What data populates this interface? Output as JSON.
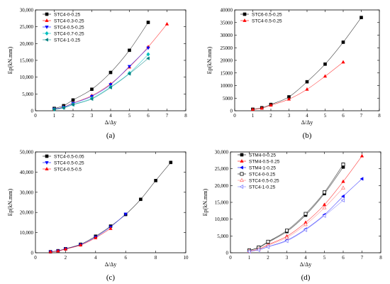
{
  "chart_data": [
    {
      "type": "scatter",
      "panel_label": "(a)",
      "xlabel": "Δ/Δy",
      "ylabel": "Ep(kN.mm)",
      "xlim": [
        0,
        8
      ],
      "ylim": [
        0,
        30000
      ],
      "x_ticks": [
        "0",
        "1",
        "2",
        "3",
        "4",
        "5",
        "6",
        "7",
        "8"
      ],
      "y_ticks": [
        "0",
        "5,000",
        "10,000",
        "15,000",
        "20,000",
        "25,000",
        "30,000"
      ],
      "legend_placement": "top-left",
      "series": [
        {
          "name": "STC4-0-0.25",
          "color": "#000000",
          "marker": "square",
          "x": [
            1,
            1.5,
            2,
            3,
            4,
            5,
            6
          ],
          "y": [
            700,
            1500,
            3200,
            6400,
            11400,
            18000,
            26300
          ]
        },
        {
          "name": "STC4-0.3-0.25",
          "color": "#ff0000",
          "marker": "triangle-up",
          "x": [
            1,
            1.5,
            2,
            3,
            4,
            5,
            6,
            7
          ],
          "y": [
            500,
            1100,
            2300,
            4500,
            8000,
            13000,
            19000,
            25800
          ]
        },
        {
          "name": "STC4-0.5-0.25",
          "color": "#0000ff",
          "marker": "triangle-down",
          "x": [
            1,
            1.5,
            2,
            3,
            4,
            5,
            6
          ],
          "y": [
            500,
            1050,
            2200,
            4300,
            7800,
            13200,
            18700
          ]
        },
        {
          "name": "STC4-0.7-0.25",
          "color": "#00bfbf",
          "marker": "diamond",
          "x": [
            1,
            1.5,
            2,
            3,
            4,
            5,
            6
          ],
          "y": [
            400,
            900,
            1900,
            3700,
            7100,
            11200,
            16800
          ]
        },
        {
          "name": "STC4-1-0.25",
          "color": "#008080",
          "marker": "triangle-left",
          "x": [
            1,
            1.5,
            2,
            3,
            4,
            5,
            6
          ],
          "y": [
            400,
            850,
            1800,
            3500,
            6900,
            11000,
            15600
          ]
        }
      ]
    },
    {
      "type": "scatter",
      "panel_label": "(b)",
      "xlabel": "Δ/Δy",
      "ylabel": "Ep(kN.mm)",
      "xlim": [
        0,
        8
      ],
      "ylim": [
        0,
        40000
      ],
      "x_ticks": [
        "0",
        "1",
        "2",
        "3",
        "4",
        "5",
        "6",
        "7",
        "8"
      ],
      "y_ticks": [
        "0",
        "5000",
        "10000",
        "15000",
        "20000",
        "25000",
        "30000",
        "35000",
        "40000"
      ],
      "legend_placement": "top-left",
      "series": [
        {
          "name": "STC6-0.5-0.25",
          "color": "#000000",
          "marker": "square",
          "x": [
            1,
            1.5,
            2,
            3,
            4,
            5,
            6,
            7
          ],
          "y": [
            600,
            1200,
            2500,
            5500,
            11500,
            18500,
            27200,
            37000
          ]
        },
        {
          "name": "STC4-0.5-0.25",
          "color": "#ff0000",
          "marker": "triangle-up",
          "x": [
            1,
            1.5,
            2,
            3,
            4,
            5,
            6
          ],
          "y": [
            500,
            1000,
            2200,
            4600,
            8500,
            13700,
            19300
          ]
        }
      ]
    },
    {
      "type": "scatter",
      "panel_label": "(c)",
      "xlabel": "Δ/Δy",
      "ylabel": "Ep(kN.mm)",
      "xlim": [
        0,
        10
      ],
      "ylim": [
        0,
        50000
      ],
      "x_ticks": [
        "0",
        "2",
        "4",
        "6",
        "8",
        "10"
      ],
      "y_ticks": [
        "0",
        "10,000",
        "20,000",
        "30,000",
        "40,000",
        "50,000"
      ],
      "legend_placement": "top-left",
      "series": [
        {
          "name": "STC4-0.5-0.05",
          "color": "#000000",
          "marker": "square",
          "x": [
            1,
            1.5,
            2,
            3,
            4,
            5,
            6,
            7,
            8,
            9
          ],
          "y": [
            500,
            1000,
            2000,
            4200,
            8200,
            13200,
            19000,
            26500,
            35800,
            44800
          ]
        },
        {
          "name": "STC4-0.5-0.25",
          "color": "#0000ff",
          "marker": "triangle-down",
          "x": [
            1,
            1.5,
            2,
            3,
            4,
            5,
            6
          ],
          "y": [
            500,
            900,
            1900,
            4000,
            7800,
            12800,
            19200
          ]
        },
        {
          "name": "STC4-0.5-0.5",
          "color": "#ff0000",
          "marker": "triangle-up",
          "x": [
            1,
            1.5,
            2,
            3,
            4,
            5
          ],
          "y": [
            450,
            850,
            1800,
            3800,
            7400,
            12000
          ]
        }
      ]
    },
    {
      "type": "scatter",
      "panel_label": "(d)",
      "xlabel": "Δ/Δy",
      "ylabel": "Ep(kN.mm)",
      "xlim": [
        0,
        8
      ],
      "ylim": [
        0,
        30000
      ],
      "x_ticks": [
        "0",
        "1",
        "2",
        "3",
        "4",
        "5",
        "6",
        "7",
        "8"
      ],
      "y_ticks": [
        "0",
        "5,000",
        "10,000",
        "15,000",
        "20,000",
        "25,000",
        "30,000"
      ],
      "legend_placement": "top-left",
      "series": [
        {
          "name": "STM4-0-0.25",
          "color": "#000000",
          "marker": "square",
          "x": [
            1,
            1.5,
            2,
            3,
            4,
            5,
            6
          ],
          "y": [
            700,
            1500,
            3100,
            6300,
            11200,
            17600,
            25500
          ]
        },
        {
          "name": "STM4-0.5-0.25",
          "color": "#ff0000",
          "marker": "triangle-up",
          "x": [
            1,
            1.5,
            2,
            3,
            4,
            5,
            6,
            7
          ],
          "y": [
            500,
            1100,
            2400,
            4900,
            9000,
            14300,
            21200,
            28800
          ]
        },
        {
          "name": "STM4-1-0.25",
          "color": "#0000ff",
          "marker": "triangle-left",
          "x": [
            1,
            1.5,
            2,
            3,
            4,
            5,
            6,
            7
          ],
          "y": [
            400,
            900,
            1800,
            3700,
            7000,
            11300,
            16800,
            22000
          ]
        },
        {
          "name": "STC4-0-0.25",
          "color": "#000000",
          "marker": "square-open",
          "x": [
            1,
            1.5,
            2,
            3,
            4,
            5,
            6
          ],
          "y": [
            700,
            1600,
            3300,
            6600,
            11600,
            18000,
            26300
          ]
        },
        {
          "name": "STC4-0.5-0.25",
          "color": "#ff7f7f",
          "marker": "triangle-up-open",
          "x": [
            1,
            1.5,
            2,
            3,
            4,
            5,
            6
          ],
          "y": [
            500,
            1050,
            2200,
            4500,
            8400,
            13400,
            19300
          ]
        },
        {
          "name": "STC4-1-0.25",
          "color": "#7f7fff",
          "marker": "triangle-left-open",
          "x": [
            1,
            1.5,
            2,
            3,
            4,
            5,
            6
          ],
          "y": [
            400,
            850,
            1750,
            3500,
            6800,
            11000,
            15600
          ]
        }
      ]
    }
  ]
}
